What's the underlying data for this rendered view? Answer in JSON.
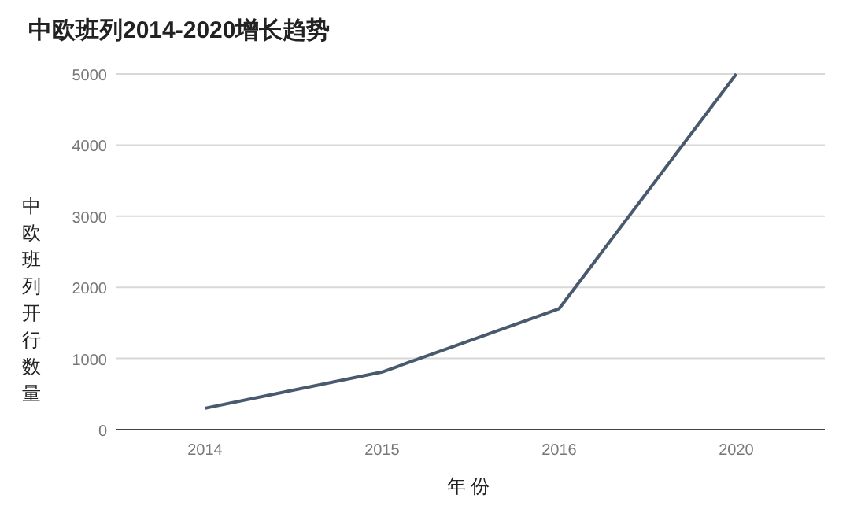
{
  "chart_data": {
    "type": "line",
    "title": "中欧班列2014-2020增长趋势",
    "xlabel": "年份",
    "ylabel": "中欧班列开行数量",
    "categories": [
      "2014",
      "2015",
      "2016",
      "2020"
    ],
    "series": [
      {
        "color": "#4a5a6e",
        "values": [
          300,
          810,
          1700,
          5000
        ]
      }
    ],
    "ylim": [
      0,
      5000
    ],
    "yticks": [
      0,
      1000,
      2000,
      3000,
      4000,
      5000
    ],
    "grid": "y",
    "marker": "none",
    "line_style": "solid"
  }
}
